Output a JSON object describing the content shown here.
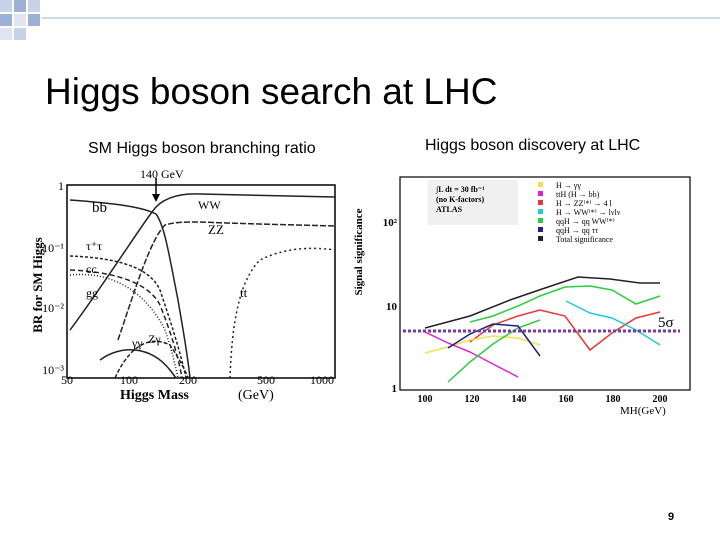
{
  "header": {
    "title": "Higgs boson search at LHC"
  },
  "panels": [
    {
      "caption": "SM Higgs boson branching ratio",
      "figure": {
        "y_axis_title": "BR for SM Higgs",
        "x_axis_title": "Higgs Mass",
        "x_axis_unit": "(GeV)",
        "x_tick_labels": [
          "50",
          "100",
          "200",
          "500",
          "1000"
        ],
        "y_tick_labels": [
          "1",
          "10⁻¹",
          "10⁻²",
          "10⁻³"
        ],
        "marker": "140 GeV",
        "curve_labels": [
          "bb",
          "WW",
          "ZZ",
          "τ⁺τ",
          "cc",
          "gg",
          "tt",
          "γγ",
          "Zγ"
        ]
      }
    },
    {
      "caption": "Higgs boson  discovery at LHC",
      "figure": {
        "y_axis_title": "Signal significance",
        "y_tick_labels": [
          "10²",
          "10",
          "1"
        ],
        "x_tick_labels": [
          "100",
          "120",
          "140",
          "160",
          "180",
          "200"
        ],
        "legend_header": [
          "∫L dt = 30 fb⁻¹",
          "(no K-factors)",
          "ATLAS"
        ],
        "legend_entries": [
          "H → γγ",
          "ttH (H → bb)",
          "H → ZZ⁽*⁾ → 4 l",
          "H → WW⁽*⁾ → lνlν",
          "qqH → qq WW⁽*⁾",
          "qqH → qq ττ",
          "Total significance"
        ],
        "threshold_label": "5σ",
        "x_axis_title": "MH(GeV)"
      }
    }
  ],
  "page_number": "9"
}
